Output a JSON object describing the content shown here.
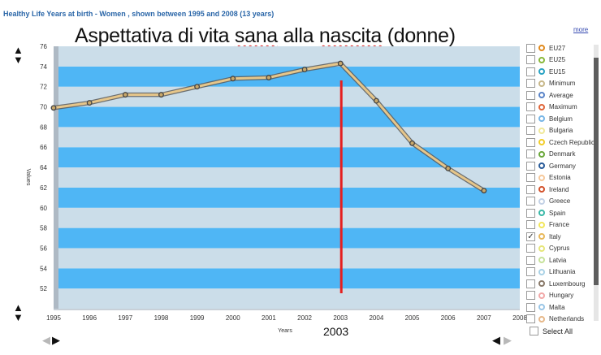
{
  "header": {
    "subtitle": "Healthy Life Years at birth - Women , shown between 1995 and 2008 (13 years)"
  },
  "title_parts": [
    "Aspettativa di vita ",
    "sana",
    " alla ",
    "nascita",
    " (donne)"
  ],
  "more_link": "more",
  "annotation": {
    "year": 2003,
    "label": "2003",
    "color": "#e51f1f"
  },
  "colors": {
    "band_blue": "#4fb6f5",
    "band_light": "#cbdde9",
    "line": "#e6c68a",
    "line_shadow": "#5a5a5a"
  },
  "select_all": "Select All",
  "legend": [
    {
      "label": "EU27",
      "color": "#e08a1e",
      "checked": false
    },
    {
      "label": "EU25",
      "color": "#8ab83a",
      "checked": false
    },
    {
      "label": "EU15",
      "color": "#2aa3c4",
      "checked": false
    },
    {
      "label": "Minimum",
      "color": "#c8b88a",
      "checked": false
    },
    {
      "label": "Average",
      "color": "#5a84c8",
      "checked": false
    },
    {
      "label": "Maximum",
      "color": "#e0663a",
      "checked": false
    },
    {
      "label": "Belgium",
      "color": "#78b6e6",
      "checked": false
    },
    {
      "label": "Bulgaria",
      "color": "#f0e89a",
      "checked": false
    },
    {
      "label": "Czech Republic",
      "color": "#f2cd2a",
      "checked": false
    },
    {
      "label": "Denmark",
      "color": "#6aa83a",
      "checked": false
    },
    {
      "label": "Germany",
      "color": "#2a5c9a",
      "checked": false
    },
    {
      "label": "Estonia",
      "color": "#f6c89a",
      "checked": false
    },
    {
      "label": "Ireland",
      "color": "#d2502a",
      "checked": false
    },
    {
      "label": "Greece",
      "color": "#c4d2e6",
      "checked": false
    },
    {
      "label": "Spain",
      "color": "#3ab8a8",
      "checked": false
    },
    {
      "label": "France",
      "color": "#f2e65a",
      "checked": false
    },
    {
      "label": "Italy",
      "color": "#e8b85a",
      "checked": true
    },
    {
      "label": "Cyprus",
      "color": "#e6e67a",
      "checked": false
    },
    {
      "label": "Latvia",
      "color": "#c6e29a",
      "checked": false
    },
    {
      "label": "Lithuania",
      "color": "#aad2e6",
      "checked": false
    },
    {
      "label": "Luxembourg",
      "color": "#8a7a6a",
      "checked": false
    },
    {
      "label": "Hungary",
      "color": "#f2a8a8",
      "checked": false
    },
    {
      "label": "Malta",
      "color": "#9ac6e6",
      "checked": false
    },
    {
      "label": "Netherlands",
      "color": "#e6b88a",
      "checked": false
    }
  ],
  "chart_data": {
    "type": "line",
    "title": "Aspettativa di vita sana alla nascita (donne)",
    "xlabel": "Years",
    "ylabel": "Values",
    "x": [
      1995,
      1996,
      1997,
      1998,
      1999,
      2000,
      2001,
      2002,
      2003,
      2004,
      2005,
      2006,
      2007
    ],
    "x_ticks": [
      1995,
      1996,
      1997,
      1998,
      1999,
      2000,
      2001,
      2002,
      2003,
      2004,
      2005,
      2006,
      2007,
      2008
    ],
    "y_ticks": [
      52,
      54,
      56,
      58,
      60,
      62,
      64,
      66,
      68,
      70,
      72,
      74,
      76
    ],
    "xlim": [
      1995,
      2008
    ],
    "ylim": [
      50,
      76
    ],
    "series": [
      {
        "name": "Italy",
        "values": [
          69.9,
          70.4,
          71.2,
          71.2,
          72.0,
          72.8,
          72.9,
          73.7,
          74.3,
          70.6,
          66.4,
          63.9,
          61.7
        ]
      }
    ],
    "legend_position": "right",
    "grid": "alternating horizontal bands"
  }
}
